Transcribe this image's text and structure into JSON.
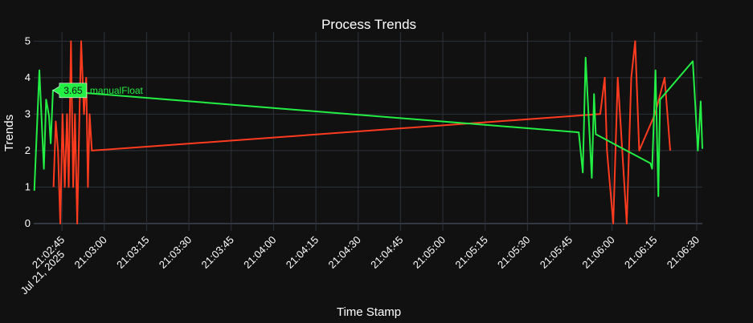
{
  "chart_data": {
    "type": "line",
    "title": "Process Trends",
    "xlabel": "Time Stamp",
    "ylabel": "Trends",
    "date_label": "Jul 21, 2025",
    "x_tick_labels": [
      "21:02:45",
      "21:03:00",
      "21:03:15",
      "21:03:30",
      "21:03:45",
      "21:04:00",
      "21:04:15",
      "21:04:30",
      "21:04:45",
      "21:05:00",
      "21:05:15",
      "21:05:30",
      "21:05:45",
      "21:06:00",
      "21:06:15",
      "21:06:30"
    ],
    "y_tick_labels": [
      "0",
      "1",
      "2",
      "3",
      "4",
      "5"
    ],
    "xlim": [
      "21:02:35.0",
      "21:06:32.0"
    ],
    "ylim": [
      -0.2,
      5.25
    ],
    "grid": true,
    "series": [
      {
        "name": "",
        "color": "#ff3b1f",
        "points": [
          [
            "21:02:42.0",
            1.0
          ],
          [
            "21:02:42.8",
            2.8
          ],
          [
            "21:02:43.6",
            2.0
          ],
          [
            "21:02:44.4",
            0.0
          ],
          [
            "21:02:45.2",
            3.0
          ],
          [
            "21:02:46.0",
            1.0
          ],
          [
            "21:02:46.8",
            3.0
          ],
          [
            "21:02:47.4",
            1.0
          ],
          [
            "21:02:48.2",
            5.0
          ],
          [
            "21:02:49.0",
            1.0
          ],
          [
            "21:02:49.6",
            3.0
          ],
          [
            "21:02:50.4",
            0.0
          ],
          [
            "21:02:51.2",
            3.0
          ],
          [
            "21:02:51.8",
            5.0
          ],
          [
            "21:02:52.8",
            3.0
          ],
          [
            "21:02:53.6",
            4.0
          ],
          [
            "21:02:54.2",
            1.0
          ],
          [
            "21:02:54.8",
            3.0
          ],
          [
            "21:02:55.6",
            2.0
          ],
          [
            "21:05:55.2",
            3.0
          ],
          [
            "21:05:55.8",
            3.0
          ],
          [
            "21:05:57.4",
            4.0
          ],
          [
            "21:05:58.2",
            2.0
          ],
          [
            "21:06:00.4",
            0.0
          ],
          [
            "21:06:02.0",
            4.0
          ],
          [
            "21:06:03.6",
            2.0
          ],
          [
            "21:06:05.2",
            0.0
          ],
          [
            "21:06:06.8",
            4.0
          ],
          [
            "21:06:08.2",
            5.0
          ],
          [
            "21:06:09.6",
            2.0
          ],
          [
            "21:06:15.2",
            3.0
          ],
          [
            "21:06:18.6",
            4.0
          ],
          [
            "21:06:20.6",
            2.0
          ]
        ]
      },
      {
        "name": "manualFloat",
        "color": "#22ee44",
        "points": [
          [
            "21:02:35.2",
            0.9
          ],
          [
            "21:02:37.0",
            4.2
          ],
          [
            "21:02:38.6",
            1.5
          ],
          [
            "21:02:39.4",
            3.4
          ],
          [
            "21:02:40.4",
            2.95
          ],
          [
            "21:02:41.0",
            2.2
          ],
          [
            "21:02:41.8",
            3.65
          ],
          [
            "21:05:48.2",
            2.5
          ],
          [
            "21:05:49.6",
            1.4
          ],
          [
            "21:05:50.6",
            4.55
          ],
          [
            "21:05:52.8",
            1.25
          ],
          [
            "21:05:53.6",
            3.55
          ],
          [
            "21:05:54.2",
            2.45
          ],
          [
            "21:06:13.6",
            1.65
          ],
          [
            "21:06:14.2",
            1.5
          ],
          [
            "21:06:15.4",
            4.2
          ],
          [
            "21:06:16.4",
            0.75
          ],
          [
            "21:06:17.0",
            3.4
          ],
          [
            "21:06:28.6",
            4.45
          ],
          [
            "21:06:30.4",
            2.0
          ],
          [
            "21:06:31.4",
            3.35
          ],
          [
            "21:06:32.0",
            2.05
          ]
        ]
      }
    ],
    "hover": {
      "series_index": 1,
      "x": "21:02:41.8",
      "value_label": "3.65",
      "name_label": "manualFloat"
    }
  }
}
